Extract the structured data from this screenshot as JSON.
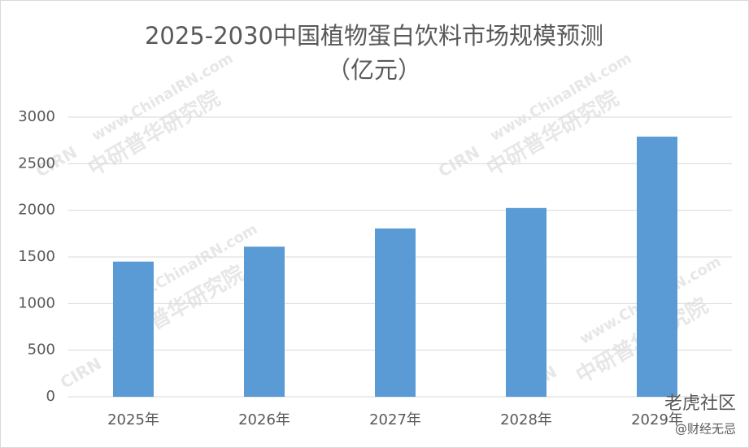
{
  "chart_data": {
    "type": "bar",
    "title": "2025-2030中国植物蛋白饮料市场规模预测",
    "subtitle": "（亿元）",
    "categories": [
      "2025年",
      "2026年",
      "2027年",
      "2028年",
      "2029年"
    ],
    "values": [
      1450,
      1610,
      1805,
      2025,
      2790
    ],
    "color": "#5b9bd5",
    "ylim": [
      0,
      3000
    ],
    "yticks": [
      0,
      500,
      1000,
      1500,
      2000,
      2500,
      3000
    ],
    "grid": true,
    "watermarks": [
      "www.ChinaIRN.com",
      "中研普华研究院",
      "CIRN",
      "老虎社区",
      "@财经无忌"
    ]
  }
}
